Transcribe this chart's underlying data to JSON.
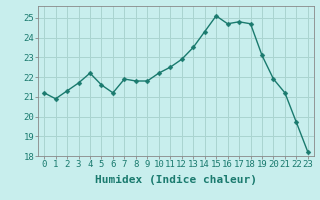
{
  "x": [
    0,
    1,
    2,
    3,
    4,
    5,
    6,
    7,
    8,
    9,
    10,
    11,
    12,
    13,
    14,
    15,
    16,
    17,
    18,
    19,
    20,
    21,
    22,
    23
  ],
  "y": [
    21.2,
    20.9,
    21.3,
    21.7,
    22.2,
    21.6,
    21.2,
    21.9,
    21.8,
    21.8,
    22.2,
    22.5,
    22.9,
    23.5,
    24.3,
    25.1,
    24.7,
    24.8,
    24.7,
    23.1,
    21.9,
    21.2,
    19.7,
    18.2
  ],
  "line_color": "#1a7a6e",
  "marker_color": "#1a7a6e",
  "bg_color": "#c8eeed",
  "grid_color": "#aad4d0",
  "xlabel": "Humidex (Indice chaleur)",
  "xlim": [
    -0.5,
    23.5
  ],
  "ylim": [
    18,
    25.6
  ],
  "yticks": [
    18,
    19,
    20,
    21,
    22,
    23,
    24,
    25
  ],
  "xticks": [
    0,
    1,
    2,
    3,
    4,
    5,
    6,
    7,
    8,
    9,
    10,
    11,
    12,
    13,
    14,
    15,
    16,
    17,
    18,
    19,
    20,
    21,
    22,
    23
  ],
  "tick_fontsize": 6.5,
  "label_fontsize": 8,
  "marker_size": 2.5,
  "line_width": 1.0,
  "tick_color": "#1a7a6e",
  "spine_color": "#888888"
}
